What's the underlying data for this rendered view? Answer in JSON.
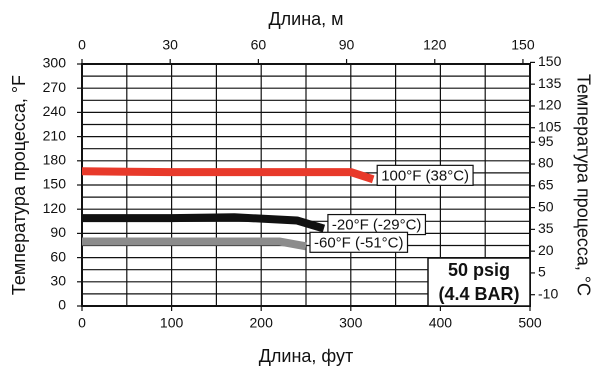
{
  "chart_data": {
    "type": "line",
    "x_title": "Длина, фут",
    "x2_title": "Длина, м",
    "y_title": "Температура процесса, °F",
    "y2_title": "Температура процесса, °C",
    "xlim": [
      0,
      500
    ],
    "xticks": [
      0,
      100,
      200,
      300,
      400,
      500
    ],
    "x2lim": [
      0,
      152.4
    ],
    "x2ticks": [
      0,
      30,
      60,
      90,
      120,
      150
    ],
    "ylim": [
      0,
      300
    ],
    "yticks": [
      0,
      30,
      60,
      90,
      120,
      150,
      180,
      210,
      240,
      270,
      300
    ],
    "y2lim": [
      -17.78,
      148.89
    ],
    "y2ticks": [
      -10,
      5,
      20,
      35,
      50,
      65,
      80,
      95,
      105,
      120,
      135,
      150
    ],
    "grid": true,
    "annotation": [
      "50 psig",
      "(4.4 BAR)"
    ],
    "series": [
      {
        "name": "100°F (38°C)",
        "color": "#e8392a",
        "x": [
          0,
          100,
          200,
          300,
          325
        ],
        "values": [
          167,
          166,
          166,
          166,
          157
        ]
      },
      {
        "name": "-20°F (-29°C)",
        "color": "#111111",
        "x": [
          0,
          100,
          170,
          240,
          270
        ],
        "values": [
          109,
          109,
          110,
          106,
          96
        ]
      },
      {
        "name": "-60°F (-51°C)",
        "color": "#8c8c8c",
        "x": [
          0,
          100,
          220,
          250
        ],
        "values": [
          80,
          80,
          80,
          74
        ]
      }
    ]
  }
}
